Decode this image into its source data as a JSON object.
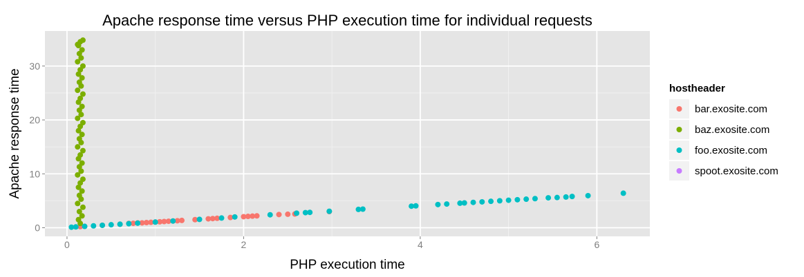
{
  "chart_data": {
    "type": "scatter",
    "title": "Apache response time versus PHP execution time for individual requests",
    "xlabel": "PHP execution time",
    "ylabel": "Apache response time",
    "xlim": [
      -0.25,
      6.6
    ],
    "ylim": [
      -1.6,
      36.5
    ],
    "xticks": [
      0,
      2,
      4,
      6
    ],
    "yticks": [
      0,
      10,
      20,
      30
    ],
    "grid": true,
    "legend": {
      "title": "hostheader",
      "placement": "right"
    },
    "series": [
      {
        "name": "bar.exosite.com",
        "color": "#F8766D",
        "points": [
          [
            0.15,
            0.2
          ],
          [
            0.2,
            0.25
          ],
          [
            0.4,
            0.45
          ],
          [
            0.6,
            0.65
          ],
          [
            0.7,
            0.8
          ],
          [
            0.75,
            0.82
          ],
          [
            0.8,
            0.9
          ],
          [
            0.85,
            0.9
          ],
          [
            0.9,
            0.95
          ],
          [
            0.95,
            1.0
          ],
          [
            1.0,
            1.05
          ],
          [
            1.05,
            1.1
          ],
          [
            1.1,
            1.15
          ],
          [
            1.15,
            1.2
          ],
          [
            1.2,
            1.25
          ],
          [
            1.25,
            1.3
          ],
          [
            1.3,
            1.35
          ],
          [
            1.45,
            1.5
          ],
          [
            1.6,
            1.65
          ],
          [
            1.65,
            1.7
          ],
          [
            1.7,
            1.75
          ],
          [
            1.85,
            1.9
          ],
          [
            2.0,
            2.05
          ],
          [
            2.05,
            2.1
          ],
          [
            2.1,
            2.15
          ],
          [
            2.15,
            2.2
          ],
          [
            2.4,
            2.45
          ],
          [
            2.5,
            2.5
          ],
          [
            2.58,
            2.55
          ],
          [
            2.97,
            3.0
          ]
        ]
      },
      {
        "name": "baz.exosite.com",
        "color": "#7CAE00",
        "points": [
          [
            0.15,
            0.8
          ],
          [
            0.13,
            1.5
          ],
          [
            0.17,
            2.2
          ],
          [
            0.14,
            3.0
          ],
          [
            0.18,
            3.8
          ],
          [
            0.12,
            4.5
          ],
          [
            0.16,
            5.3
          ],
          [
            0.14,
            6.0
          ],
          [
            0.17,
            6.8
          ],
          [
            0.13,
            7.5
          ],
          [
            0.15,
            8.3
          ],
          [
            0.18,
            9.0
          ],
          [
            0.12,
            9.8
          ],
          [
            0.16,
            10.5
          ],
          [
            0.14,
            11.3
          ],
          [
            0.17,
            12.0
          ],
          [
            0.13,
            12.8
          ],
          [
            0.15,
            13.5
          ],
          [
            0.18,
            14.3
          ],
          [
            0.12,
            15.0
          ],
          [
            0.16,
            15.8
          ],
          [
            0.14,
            16.5
          ],
          [
            0.17,
            17.3
          ],
          [
            0.13,
            18.0
          ],
          [
            0.15,
            18.8
          ],
          [
            0.18,
            19.5
          ],
          [
            0.12,
            20.3
          ],
          [
            0.16,
            21.0
          ],
          [
            0.14,
            21.8
          ],
          [
            0.17,
            22.5
          ],
          [
            0.13,
            23.3
          ],
          [
            0.15,
            24.0
          ],
          [
            0.18,
            24.8
          ],
          [
            0.12,
            25.5
          ],
          [
            0.16,
            26.3
          ],
          [
            0.14,
            27.0
          ],
          [
            0.17,
            27.8
          ],
          [
            0.13,
            28.5
          ],
          [
            0.15,
            29.3
          ],
          [
            0.18,
            30.0
          ],
          [
            0.12,
            30.8
          ],
          [
            0.16,
            31.5
          ],
          [
            0.14,
            32.3
          ],
          [
            0.17,
            33.0
          ],
          [
            0.13,
            33.8
          ],
          [
            0.15,
            34.5
          ],
          [
            0.18,
            34.8
          ],
          [
            0.12,
            34.0
          ]
        ]
      },
      {
        "name": "foo.exosite.com",
        "color": "#00BFC4",
        "points": [
          [
            0.05,
            0.1
          ],
          [
            0.1,
            0.15
          ],
          [
            0.2,
            0.25
          ],
          [
            0.3,
            0.35
          ],
          [
            0.4,
            0.45
          ],
          [
            0.5,
            0.55
          ],
          [
            0.6,
            0.65
          ],
          [
            0.7,
            0.75
          ],
          [
            0.8,
            0.85
          ],
          [
            1.0,
            1.05
          ],
          [
            1.2,
            1.25
          ],
          [
            1.5,
            1.55
          ],
          [
            1.75,
            1.8
          ],
          [
            1.9,
            2.0
          ],
          [
            2.3,
            2.4
          ],
          [
            2.6,
            2.7
          ],
          [
            2.7,
            2.8
          ],
          [
            2.75,
            2.85
          ],
          [
            2.97,
            3.05
          ],
          [
            3.3,
            3.4
          ],
          [
            3.35,
            3.45
          ],
          [
            3.9,
            4.0
          ],
          [
            3.95,
            4.05
          ],
          [
            4.2,
            4.3
          ],
          [
            4.3,
            4.4
          ],
          [
            4.45,
            4.55
          ],
          [
            4.5,
            4.6
          ],
          [
            4.6,
            4.7
          ],
          [
            4.7,
            4.8
          ],
          [
            4.8,
            4.9
          ],
          [
            4.9,
            5.0
          ],
          [
            5.0,
            5.1
          ],
          [
            5.1,
            5.2
          ],
          [
            5.2,
            5.3
          ],
          [
            5.3,
            5.4
          ],
          [
            5.45,
            5.55
          ],
          [
            5.55,
            5.6
          ],
          [
            5.65,
            5.7
          ],
          [
            5.72,
            5.8
          ],
          [
            5.9,
            5.95
          ],
          [
            6.3,
            6.4
          ]
        ]
      },
      {
        "name": "spoot.exosite.com",
        "color": "#C77CFF",
        "points": []
      }
    ]
  }
}
